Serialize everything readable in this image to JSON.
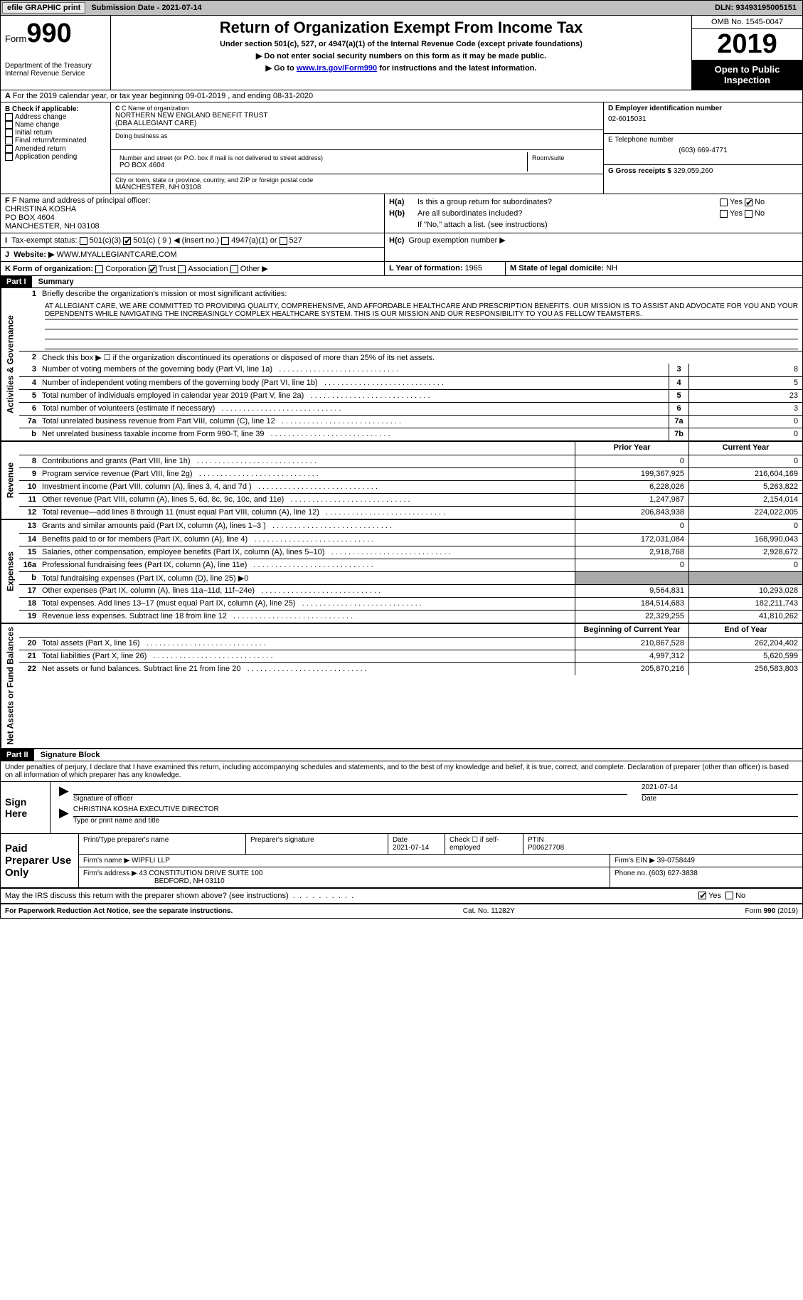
{
  "topbar": {
    "efile_label": "efile GRAPHIC print",
    "submission_label": "Submission Date - 2021-07-14",
    "dln_label": "DLN: 93493195005151"
  },
  "header": {
    "form_word": "Form",
    "form_number": "990",
    "dept1": "Department of the Treasury",
    "dept2": "Internal Revenue Service",
    "title": "Return of Organization Exempt From Income Tax",
    "subtitle": "Under section 501(c), 527, or 4947(a)(1) of the Internal Revenue Code (except private foundations)",
    "arrow1": "▶ Do not enter social security numbers on this form as it may be made public.",
    "arrow2_pre": "▶ Go to ",
    "arrow2_link": "www.irs.gov/Form990",
    "arrow2_post": " for instructions and the latest information.",
    "omb": "OMB No. 1545-0047",
    "year": "2019",
    "open_public": "Open to Public Inspection"
  },
  "line_a": "For the 2019 calendar year, or tax year beginning 09-01-2019   , and ending 08-31-2020",
  "box_b": {
    "label": "B Check if applicable:",
    "opts": [
      "Address change",
      "Name change",
      "Initial return",
      "Final return/terminated",
      "Amended return",
      "Application pending"
    ]
  },
  "box_c": {
    "label": "C Name of organization",
    "name1": "NORTHERN NEW ENGLAND BENEFIT TRUST",
    "name2": "(DBA ALLEGIANT CARE)",
    "dba_label": "Doing business as",
    "street_label": "Number and street (or P.O. box if mail is not delivered to street address)",
    "room_label": "Room/suite",
    "street": "PO BOX 4604",
    "city_label": "City or town, state or province, country, and ZIP or foreign postal code",
    "city": "MANCHESTER, NH  03108"
  },
  "box_d": {
    "label": "D Employer identification number",
    "value": "02-6015031"
  },
  "box_e": {
    "label": "E Telephone number",
    "value": "(603) 669-4771"
  },
  "box_g": {
    "label": "G Gross receipts $ ",
    "value": "329,059,260"
  },
  "box_f": {
    "label": "F Name and address of principal officer:",
    "name": "CHRISTINA KOSHA",
    "addr1": "PO BOX 4604",
    "addr2": "MANCHESTER, NH  03108"
  },
  "box_h": {
    "ha_label": "Is this a group return for subordinates?",
    "hb_label": "Are all subordinates included?",
    "hb_note": "If \"No,\" attach a list. (see instructions)",
    "hc_label": "Group exemption number ▶",
    "yes": "Yes",
    "no": "No"
  },
  "row_i": {
    "label": "Tax-exempt status:",
    "o1": "501(c)(3)",
    "o2a": "501(c) ( 9 ) ",
    "o2b": "◀ (insert no.)",
    "o3": "4947(a)(1) or",
    "o4": "527"
  },
  "row_j": {
    "label": "Website: ▶",
    "value": "WWW.MYALLEGIANTCARE.COM"
  },
  "row_k": {
    "label": "K Form of organization:",
    "opts": [
      "Corporation",
      "Trust",
      "Association",
      "Other ▶"
    ]
  },
  "row_l": {
    "label": "L Year of formation: ",
    "value": "1965"
  },
  "row_m": {
    "label": "M State of legal domicile: ",
    "value": "NH"
  },
  "part1": {
    "tag": "Part I",
    "title": "Summary"
  },
  "mission": {
    "num": "1",
    "label": "Briefly describe the organization's mission or most significant activities:",
    "text": "AT ALLEGIANT CARE, WE ARE COMMITTED TO PROVIDING QUALITY, COMPREHENSIVE, AND AFFORDABLE HEALTHCARE AND PRESCRIPTION BENEFITS. OUR MISSION IS TO ASSIST AND ADVOCATE FOR YOU AND YOUR DEPENDENTS WHILE NAVIGATING THE INCREASINGLY COMPLEX HEALTHCARE SYSTEM. THIS IS OUR MISSION AND OUR RESPONSIBILITY TO YOU AS FELLOW TEAMSTERS."
  },
  "line2": "Check this box ▶ ☐ if the organization discontinued its operations or disposed of more than 25% of its net assets.",
  "gov_lines": [
    {
      "n": "3",
      "d": "Number of voting members of the governing body (Part VI, line 1a)",
      "box": "3",
      "v": "8"
    },
    {
      "n": "4",
      "d": "Number of independent voting members of the governing body (Part VI, line 1b)",
      "box": "4",
      "v": "5"
    },
    {
      "n": "5",
      "d": "Total number of individuals employed in calendar year 2019 (Part V, line 2a)",
      "box": "5",
      "v": "23"
    },
    {
      "n": "6",
      "d": "Total number of volunteers (estimate if necessary)",
      "box": "6",
      "v": "3"
    },
    {
      "n": "7a",
      "d": "Total unrelated business revenue from Part VIII, column (C), line 12",
      "box": "7a",
      "v": "0"
    },
    {
      "n": "b",
      "d": "Net unrelated business taxable income from Form 990-T, line 39",
      "box": "7b",
      "v": "0"
    }
  ],
  "rev_header": {
    "prior": "Prior Year",
    "current": "Current Year"
  },
  "rev_lines": [
    {
      "n": "8",
      "d": "Contributions and grants (Part VIII, line 1h)",
      "p": "0",
      "c": "0"
    },
    {
      "n": "9",
      "d": "Program service revenue (Part VIII, line 2g)",
      "p": "199,367,925",
      "c": "216,604,169"
    },
    {
      "n": "10",
      "d": "Investment income (Part VIII, column (A), lines 3, 4, and 7d )",
      "p": "6,228,026",
      "c": "5,263,822"
    },
    {
      "n": "11",
      "d": "Other revenue (Part VIII, column (A), lines 5, 6d, 8c, 9c, 10c, and 11e)",
      "p": "1,247,987",
      "c": "2,154,014"
    },
    {
      "n": "12",
      "d": "Total revenue—add lines 8 through 11 (must equal Part VIII, column (A), line 12)",
      "p": "206,843,938",
      "c": "224,022,005"
    }
  ],
  "exp_lines": [
    {
      "n": "13",
      "d": "Grants and similar amounts paid (Part IX, column (A), lines 1–3 )",
      "p": "0",
      "c": "0"
    },
    {
      "n": "14",
      "d": "Benefits paid to or for members (Part IX, column (A), line 4)",
      "p": "172,031,084",
      "c": "168,990,043"
    },
    {
      "n": "15",
      "d": "Salaries, other compensation, employee benefits (Part IX, column (A), lines 5–10)",
      "p": "2,918,768",
      "c": "2,928,672"
    },
    {
      "n": "16a",
      "d": "Professional fundraising fees (Part IX, column (A), line 11e)",
      "p": "0",
      "c": "0"
    },
    {
      "n": "b",
      "d": "Total fundraising expenses (Part IX, column (D), line 25) ▶0",
      "p": "",
      "c": "",
      "shade": true
    },
    {
      "n": "17",
      "d": "Other expenses (Part IX, column (A), lines 11a–11d, 11f–24e)",
      "p": "9,564,831",
      "c": "10,293,028"
    },
    {
      "n": "18",
      "d": "Total expenses. Add lines 13–17 (must equal Part IX, column (A), line 25)",
      "p": "184,514,683",
      "c": "182,211,743"
    },
    {
      "n": "19",
      "d": "Revenue less expenses. Subtract line 18 from line 12",
      "p": "22,329,255",
      "c": "41,810,262"
    }
  ],
  "bal_header": {
    "begin": "Beginning of Current Year",
    "end": "End of Year"
  },
  "bal_lines": [
    {
      "n": "20",
      "d": "Total assets (Part X, line 16)",
      "p": "210,867,528",
      "c": "262,204,402"
    },
    {
      "n": "21",
      "d": "Total liabilities (Part X, line 26)",
      "p": "4,997,312",
      "c": "5,620,599"
    },
    {
      "n": "22",
      "d": "Net assets or fund balances. Subtract line 21 from line 20",
      "p": "205,870,216",
      "c": "256,583,803"
    }
  ],
  "part2": {
    "tag": "Part II",
    "title": "Signature Block"
  },
  "perjury": "Under penalties of perjury, I declare that I have examined this return, including accompanying schedules and statements, and to the best of my knowledge and belief, it is true, correct, and complete. Declaration of preparer (other than officer) is based on all information of which preparer has any knowledge.",
  "sign": {
    "here": "Sign Here",
    "sig_label": "Signature of officer",
    "date_label": "Date",
    "date_value": "2021-07-14",
    "name": "CHRISTINA KOSHA EXECUTIVE DIRECTOR",
    "name_label": "Type or print name and title"
  },
  "paid": {
    "title": "Paid Preparer Use Only",
    "h1": "Print/Type preparer's name",
    "h2": "Preparer's signature",
    "h3": "Date",
    "h3v": "2021-07-14",
    "h4": "Check ☐ if self-employed",
    "h5": "PTIN",
    "h5v": "P00627708",
    "firm_name_label": "Firm's name    ▶",
    "firm_name": "WIPFLI LLP",
    "firm_ein_label": "Firm's EIN ▶",
    "firm_ein": "39-0758449",
    "firm_addr_label": "Firm's address ▶",
    "firm_addr1": "43 CONSTITUTION DRIVE SUITE 100",
    "firm_addr2": "BEDFORD, NH  03110",
    "phone_label": "Phone no. ",
    "phone": "(603) 627-3838"
  },
  "discuss": {
    "text": "May the IRS discuss this return with the preparer shown above? (see instructions)",
    "yes": "Yes",
    "no": "No"
  },
  "footer": {
    "left": "For Paperwork Reduction Act Notice, see the separate instructions.",
    "mid": "Cat. No. 11282Y",
    "right": "Form 990 (2019)"
  },
  "vlabels": {
    "gov": "Activities & Governance",
    "rev": "Revenue",
    "exp": "Expenses",
    "bal": "Net Assets or Fund Balances"
  }
}
